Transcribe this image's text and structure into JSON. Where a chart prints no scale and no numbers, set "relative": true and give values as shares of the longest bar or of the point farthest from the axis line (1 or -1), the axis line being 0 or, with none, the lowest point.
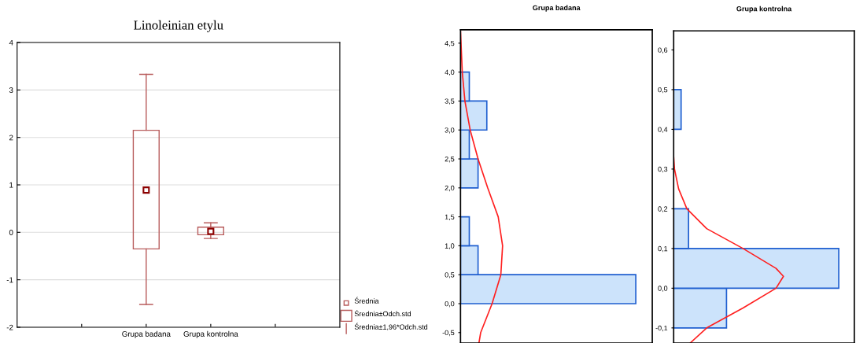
{
  "chart_data": [
    {
      "type": "box",
      "title": "Linoleinian etylu",
      "categories": [
        null,
        "Grupa badana",
        "Grupa kontrolna",
        null
      ],
      "color": "#b85c5c",
      "ylim": [
        -2,
        4
      ],
      "yticks": [
        -2,
        -1,
        0,
        1,
        2,
        3,
        4
      ],
      "grid": "y",
      "boxes": [
        null,
        {
          "low": -1.52,
          "q1": -0.35,
          "median": 0.89,
          "q3": 2.15,
          "high": 3.33
        },
        {
          "low": -0.13,
          "q1": -0.05,
          "median": 0.02,
          "q3": 0.11,
          "high": 0.2
        },
        null
      ],
      "annotations": [
        "Średnia",
        "Średnia±Odch.std",
        "Średnia±1,96*Odch.std"
      ]
    },
    {
      "type": "histogram",
      "title": "Grupa badana",
      "orientation": "horizontal",
      "relative": true,
      "tick_labels": "y",
      "ylim": [
        -0.68,
        4.73
      ],
      "yticks": [
        {
          "value": -0.5,
          "label": "-0,5"
        },
        {
          "value": 0,
          "label": "0,0"
        },
        {
          "value": 0.5,
          "label": "0,5"
        },
        {
          "value": 1,
          "label": "1,0"
        },
        {
          "value": 1.5,
          "label": "1,5"
        },
        {
          "value": 2,
          "label": "2,0"
        },
        {
          "value": 2.5,
          "label": "2,5"
        },
        {
          "value": 3,
          "label": "3,0"
        },
        {
          "value": 3.5,
          "label": "3,5"
        },
        {
          "value": 4,
          "label": "4,0"
        },
        {
          "value": 4.5,
          "label": "4,5"
        }
      ],
      "series": [
        {
          "type": "histogram",
          "color": "#cce3fb",
          "bins": [
            0,
            0.5,
            1,
            1.5,
            2,
            2.5,
            3,
            3.5,
            4
          ],
          "values": [
            1,
            0.1,
            0.05,
            0,
            0.1,
            0.05,
            0.15,
            0.05
          ]
        },
        {
          "type": "line",
          "color": "#ff2020",
          "x": [
            -0.68,
            -0.5,
            0,
            0.5,
            1,
            1.5,
            2,
            2.5,
            3,
            3.5,
            4,
            4.7
          ],
          "values": [
            0.105,
            0.115,
            0.18,
            0.23,
            0.24,
            0.215,
            0.155,
            0.1,
            0.055,
            0.025,
            0.01,
            0
          ]
        }
      ]
    },
    {
      "type": "histogram",
      "title": "Grupa kontrolna",
      "orientation": "horizontal",
      "relative": true,
      "tick_labels": "y",
      "ylim": [
        -0.138,
        0.648
      ],
      "yticks": [
        {
          "value": -0.1,
          "label": "-0,1"
        },
        {
          "value": 0,
          "label": "0,0"
        },
        {
          "value": 0.1,
          "label": "0,1"
        },
        {
          "value": 0.2,
          "label": "0,2"
        },
        {
          "value": 0.3,
          "label": "0,3"
        },
        {
          "value": 0.4,
          "label": "0,4"
        },
        {
          "value": 0.5,
          "label": "0,5"
        },
        {
          "value": 0.6,
          "label": "0,6"
        }
      ],
      "series": [
        {
          "type": "histogram",
          "color": "#cce3fb",
          "bins": [
            -0.1,
            0,
            0.1,
            0.2,
            0.3,
            0.4,
            0.5
          ],
          "values": [
            0.32,
            1,
            0.09,
            0,
            0,
            0.045
          ]
        },
        {
          "type": "line",
          "color": "#ff2020",
          "x": [
            -0.138,
            -0.1,
            -0.05,
            0,
            0.03,
            0.05,
            0.1,
            0.15,
            0.2,
            0.25,
            0.3,
            0.33
          ],
          "values": [
            0.1,
            0.2,
            0.42,
            0.62,
            0.665,
            0.62,
            0.42,
            0.2,
            0.08,
            0.03,
            0.005,
            0
          ]
        }
      ]
    }
  ]
}
